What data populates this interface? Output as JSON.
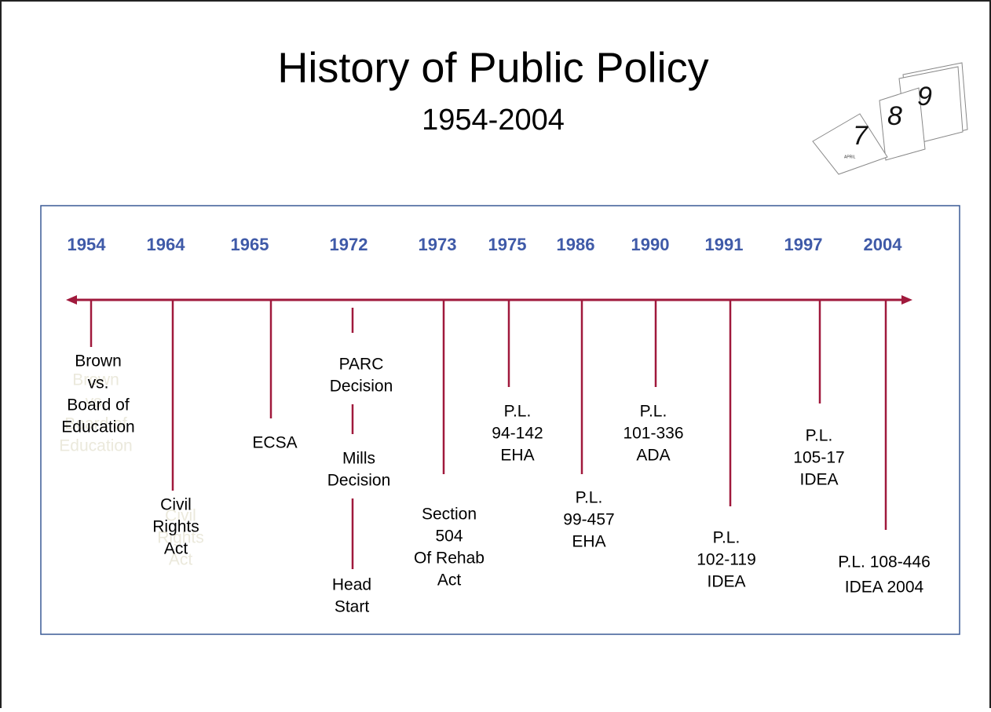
{
  "header": {
    "title": "History of Public Policy",
    "subtitle": "1954-2004"
  },
  "icon": {
    "pages": [
      "7",
      "8",
      "9"
    ],
    "month": "APRIL"
  },
  "timeline": {
    "events": [
      {
        "year": "1954",
        "labels": [
          [
            "Brown",
            "vs.",
            "Board of",
            "Education"
          ]
        ]
      },
      {
        "year": "1964",
        "labels": [
          [
            "Civil",
            "Rights",
            "Act"
          ]
        ]
      },
      {
        "year": "1965",
        "labels": [
          [
            "ECSA"
          ]
        ]
      },
      {
        "year": "1972",
        "labels": [
          [
            "PARC",
            "Decision"
          ],
          [
            "Mills",
            "Decision"
          ],
          [
            "Head",
            "Start"
          ]
        ]
      },
      {
        "year": "1973",
        "labels": [
          [
            "Section",
            "504",
            "Of Rehab",
            "Act"
          ]
        ]
      },
      {
        "year": "1975",
        "labels": [
          [
            "P.L.",
            "94-142",
            "EHA"
          ]
        ]
      },
      {
        "year": "1986",
        "labels": [
          [
            "P.L.",
            "99-457",
            "EHA"
          ]
        ]
      },
      {
        "year": "1990",
        "labels": [
          [
            "P.L.",
            "101-336",
            "ADA"
          ]
        ]
      },
      {
        "year": "1991",
        "labels": [
          [
            "P.L.",
            "102-119",
            "IDEA"
          ]
        ]
      },
      {
        "year": "1997",
        "labels": [
          [
            "P.L.",
            "105-17",
            "IDEA"
          ]
        ]
      },
      {
        "year": "2004",
        "labels": [
          [
            "P.L. 108-446",
            "IDEA 2004"
          ]
        ]
      }
    ]
  }
}
